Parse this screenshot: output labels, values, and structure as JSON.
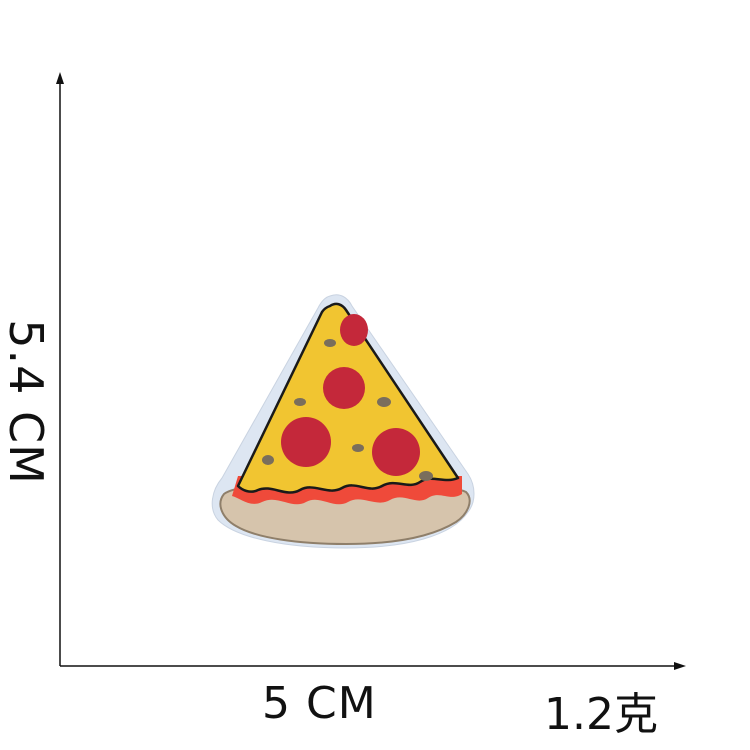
{
  "dimensions": {
    "height": "5.4 CM",
    "width": "5 CM",
    "weight": "1.2克"
  },
  "colors": {
    "background": "#ffffff",
    "axis": "#111111",
    "backing": "#dde6f2",
    "outline": "#1a1a1a",
    "cheese": "#f1c531",
    "sauce": "#ef4a3a",
    "crust": "#d6c4ac",
    "pepperoni": "#c4283a",
    "olive": "#7a6e5c"
  },
  "icons": {
    "product": "pizza-slice-patch"
  }
}
